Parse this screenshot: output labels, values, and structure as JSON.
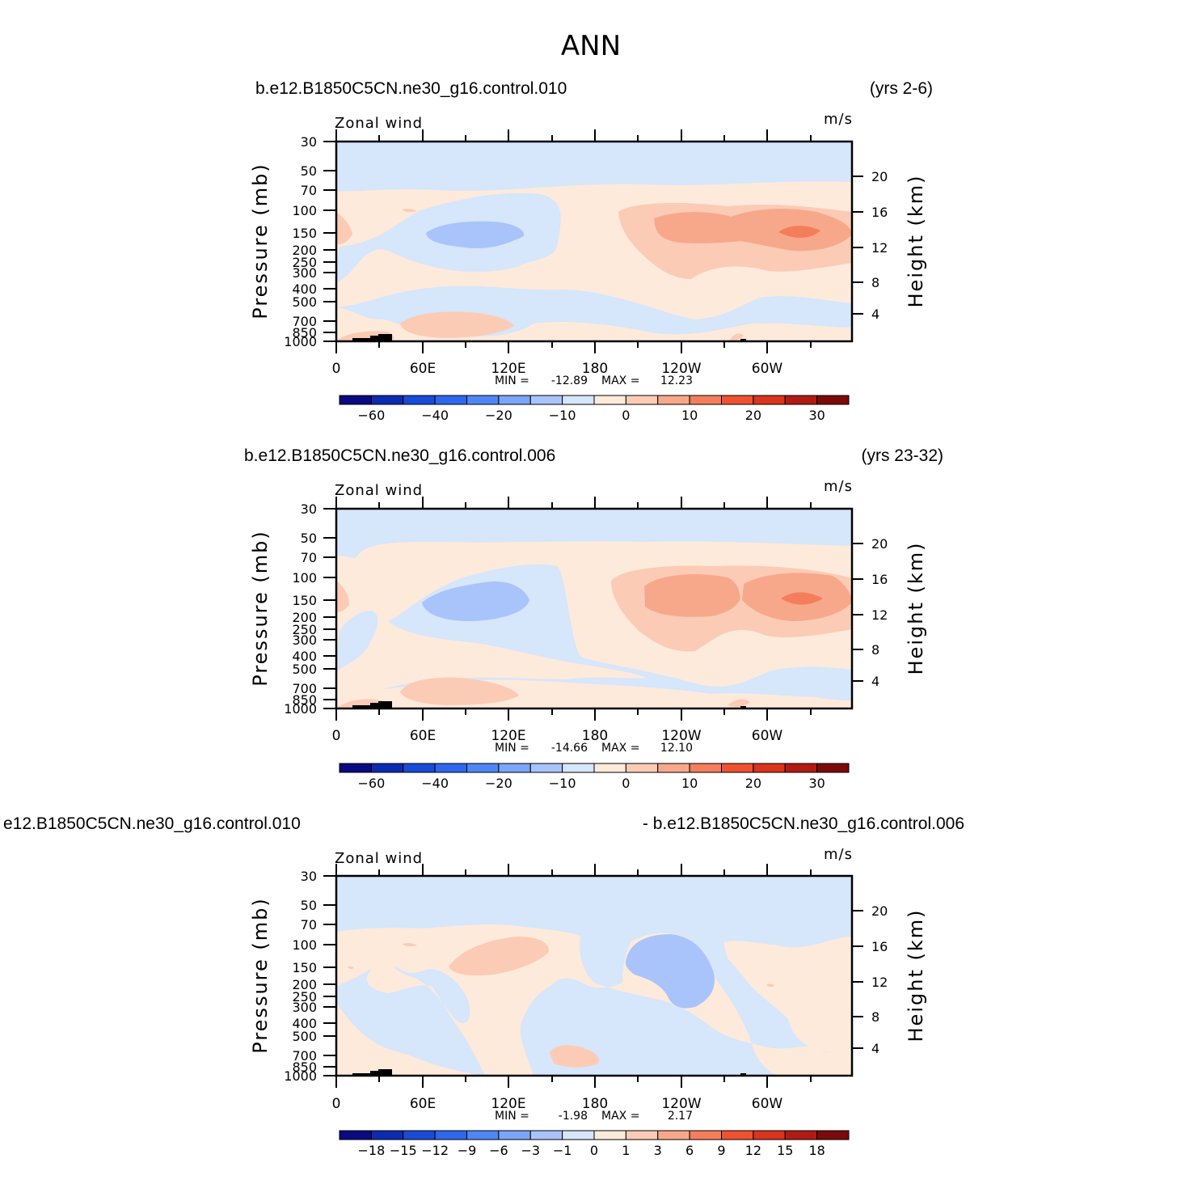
{
  "title": "ANN",
  "chart_data": [
    {
      "type": "heatmap",
      "left_title": "b.e12.B1850C5CN.ne30_g16.control.010",
      "right_title": "(yrs 2-6)",
      "variable_label": "Zonal wind",
      "units": "m/s",
      "ylabel": "Pressure (mb)",
      "right_ylabel": "Height (km)",
      "x_ticks": [
        "0",
        "60E",
        "120E",
        "180",
        "120W",
        "60W"
      ],
      "y_ticks": [
        "30",
        "50",
        "70",
        "100",
        "150",
        "200",
        "250",
        "300",
        "400",
        "500",
        "700",
        "850",
        "1000"
      ],
      "height_ticks": [
        "20",
        "16",
        "12",
        "8",
        "4"
      ],
      "min_label": "MIN =",
      "min_value": "-12.89",
      "max_label": "MAX =",
      "max_value": "12.23",
      "colorbar_labels": [
        "-60",
        "-40",
        "-20",
        "-10",
        "0",
        "10",
        "20",
        "30"
      ],
      "colorbar_levels": [
        -70,
        -60,
        -50,
        -40,
        -30,
        -20,
        -15,
        -10,
        -5,
        0,
        5,
        10,
        15,
        20,
        25,
        30,
        35
      ]
    },
    {
      "type": "heatmap",
      "left_title": "b.e12.B1850C5CN.ne30_g16.control.006",
      "right_title": "(yrs 23-32)",
      "variable_label": "Zonal wind",
      "units": "m/s",
      "ylabel": "Pressure (mb)",
      "right_ylabel": "Height (km)",
      "x_ticks": [
        "0",
        "60E",
        "120E",
        "180",
        "120W",
        "60W"
      ],
      "y_ticks": [
        "30",
        "50",
        "70",
        "100",
        "150",
        "200",
        "250",
        "300",
        "400",
        "500",
        "700",
        "850",
        "1000"
      ],
      "height_ticks": [
        "20",
        "16",
        "12",
        "8",
        "4"
      ],
      "min_label": "MIN =",
      "min_value": "-14.66",
      "max_label": "MAX =",
      "max_value": "12.10",
      "colorbar_labels": [
        "-60",
        "-40",
        "-20",
        "-10",
        "0",
        "10",
        "20",
        "30"
      ],
      "colorbar_levels": [
        -70,
        -60,
        -50,
        -40,
        -30,
        -20,
        -15,
        -10,
        -5,
        0,
        5,
        10,
        15,
        20,
        25,
        30,
        35
      ]
    },
    {
      "type": "heatmap",
      "left_title": "e12.B1850C5CN.ne30_g16.control.010",
      "right_title": "- b.e12.B1850C5CN.ne30_g16.control.006",
      "variable_label": "Zonal wind",
      "units": "m/s",
      "ylabel": "Pressure (mb)",
      "right_ylabel": "Height (km)",
      "x_ticks": [
        "0",
        "60E",
        "120E",
        "180",
        "120W",
        "60W"
      ],
      "y_ticks": [
        "30",
        "50",
        "70",
        "100",
        "150",
        "200",
        "250",
        "300",
        "400",
        "500",
        "700",
        "850",
        "1000"
      ],
      "height_ticks": [
        "20",
        "16",
        "12",
        "8",
        "4"
      ],
      "min_label": "MIN =",
      "min_value": "-1.98",
      "max_label": "MAX =",
      "max_value": "2.17",
      "colorbar_labels": [
        "-18",
        "-15",
        "-12",
        "-9",
        "-6",
        "-3",
        "-1",
        "0",
        "1",
        "3",
        "6",
        "9",
        "12",
        "15",
        "18"
      ],
      "colorbar_levels": [
        -21,
        -18,
        -15,
        -12,
        -9,
        -6,
        -3,
        -1,
        0,
        1,
        3,
        6,
        9,
        12,
        15,
        18,
        21
      ]
    }
  ],
  "colors": {
    "palette": [
      "#0a0a82",
      "#0c2bb0",
      "#1a4ad8",
      "#2e67ee",
      "#4f86f5",
      "#7ba5f8",
      "#a9c4fa",
      "#d6e6fb",
      "#feeadb",
      "#fccbb5",
      "#f8a88a",
      "#f47e5b",
      "#ef5231",
      "#d9341d",
      "#b21b13",
      "#7d0a0a"
    ],
    "ocean_blue": "#d6e6fb",
    "light_orange": "#feeadb",
    "mid_blue": "#a9c4fa",
    "mid_orange": "#fccbb5",
    "orange": "#f8a88a",
    "dark_orange": "#f47e5b",
    "topography": "#000000"
  }
}
